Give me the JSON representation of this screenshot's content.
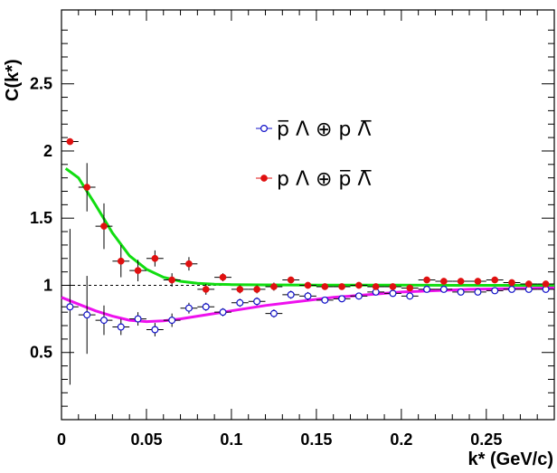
{
  "chart_data": {
    "type": "scatter",
    "xlabel": "k* (GeV/c)",
    "ylabel": "C(k*)",
    "xlim": [
      0,
      0.29
    ],
    "ylim": [
      0,
      3.05
    ],
    "grid": false,
    "legend_position": "top-right",
    "x_ticks": [
      {
        "value": 0,
        "label": "0"
      },
      {
        "value": 0.05,
        "label": "0.05"
      },
      {
        "value": 0.1,
        "label": "0.1"
      },
      {
        "value": 0.15,
        "label": "0.15"
      },
      {
        "value": 0.2,
        "label": "0.2"
      },
      {
        "value": 0.25,
        "label": "0.25"
      }
    ],
    "y_ticks": [
      {
        "value": 0.5,
        "label": "0.5"
      },
      {
        "value": 1,
        "label": "1"
      },
      {
        "value": 1.5,
        "label": "1.5"
      },
      {
        "value": 2,
        "label": "2"
      },
      {
        "value": 2.5,
        "label": "2.5"
      }
    ],
    "reference_line": {
      "y": 1,
      "style": "dashed",
      "color": "#000000"
    },
    "series": [
      {
        "name": "p̅ Λ ⊕ p Λ̅",
        "marker": "open-circle",
        "color": "#1010c8",
        "x": [
          0.005,
          0.015,
          0.025,
          0.035,
          0.045,
          0.055,
          0.065,
          0.075,
          0.085,
          0.095,
          0.105,
          0.115,
          0.125,
          0.135,
          0.145,
          0.155,
          0.165,
          0.175,
          0.185,
          0.195,
          0.205,
          0.215,
          0.225,
          0.235,
          0.245,
          0.255,
          0.265,
          0.275,
          0.285
        ],
        "y": [
          0.84,
          0.78,
          0.74,
          0.69,
          0.75,
          0.67,
          0.74,
          0.83,
          0.84,
          0.8,
          0.87,
          0.88,
          0.79,
          0.93,
          0.92,
          0.89,
          0.9,
          0.92,
          0.95,
          0.94,
          0.92,
          0.97,
          0.97,
          0.95,
          0.95,
          0.96,
          0.97,
          0.97,
          0.97
        ],
        "yerr": [
          0.58,
          0.29,
          0.11,
          0.06,
          0.05,
          0.05,
          0.05,
          0.04,
          0.03,
          0.03,
          0.03,
          0.03,
          0.03,
          0.03,
          0.03,
          0.02,
          0.02,
          0.02,
          0.02,
          0.02,
          0.02,
          0.02,
          0.02,
          0.02,
          0.02,
          0.02,
          0.02,
          0.02,
          0.02
        ]
      },
      {
        "name": "p Λ ⊕ p̅ Λ̅",
        "marker": "filled-circle",
        "color": "#e01010",
        "x": [
          0.005,
          0.015,
          0.025,
          0.035,
          0.045,
          0.055,
          0.065,
          0.075,
          0.085,
          0.095,
          0.105,
          0.115,
          0.125,
          0.135,
          0.145,
          0.155,
          0.165,
          0.175,
          0.185,
          0.195,
          0.205,
          0.215,
          0.225,
          0.235,
          0.245,
          0.255,
          0.265,
          0.275,
          0.285
        ],
        "y": [
          2.07,
          1.73,
          1.44,
          1.18,
          1.11,
          1.2,
          1.04,
          1.16,
          0.97,
          1.06,
          0.97,
          0.97,
          0.99,
          1.04,
          1.0,
          0.99,
          0.99,
          1.0,
          0.99,
          0.99,
          0.98,
          1.04,
          1.03,
          1.03,
          1.03,
          1.04,
          1.02,
          1.01,
          1.01
        ],
        "yerr": [
          0.0,
          0.18,
          0.17,
          0.12,
          0.08,
          0.06,
          0.05,
          0.05,
          0.04,
          0.03,
          0.03,
          0.03,
          0.03,
          0.02,
          0.02,
          0.02,
          0.02,
          0.02,
          0.02,
          0.02,
          0.02,
          0.02,
          0.02,
          0.02,
          0.02,
          0.02,
          0.02,
          0.02,
          0.02
        ]
      }
    ],
    "fit_curves": [
      {
        "color": "#11dd11",
        "x": [
          0.0025,
          0.01,
          0.02,
          0.03,
          0.04,
          0.05,
          0.06,
          0.07,
          0.08,
          0.09,
          0.1,
          0.12,
          0.15,
          0.2,
          0.25,
          0.29
        ],
        "y": [
          1.87,
          1.8,
          1.6,
          1.39,
          1.22,
          1.12,
          1.06,
          1.03,
          1.015,
          1.008,
          1.005,
          1.003,
          1.002,
          1.001,
          1.0,
          1.0
        ]
      },
      {
        "color": "#ee11ee",
        "x": [
          0.0,
          0.01,
          0.02,
          0.03,
          0.04,
          0.05,
          0.06,
          0.07,
          0.08,
          0.1,
          0.12,
          0.14,
          0.16,
          0.18,
          0.2,
          0.22,
          0.24,
          0.26,
          0.29
        ],
        "y": [
          0.91,
          0.86,
          0.81,
          0.77,
          0.74,
          0.73,
          0.735,
          0.75,
          0.77,
          0.81,
          0.85,
          0.88,
          0.91,
          0.93,
          0.95,
          0.96,
          0.97,
          0.975,
          0.98
        ]
      }
    ],
    "legend_entries": [
      {
        "series": 0,
        "label": "p̅ Λ ⊕ p Λ̅"
      },
      {
        "series": 1,
        "label": "p Λ ⊕ p̅ Λ̅"
      }
    ]
  }
}
